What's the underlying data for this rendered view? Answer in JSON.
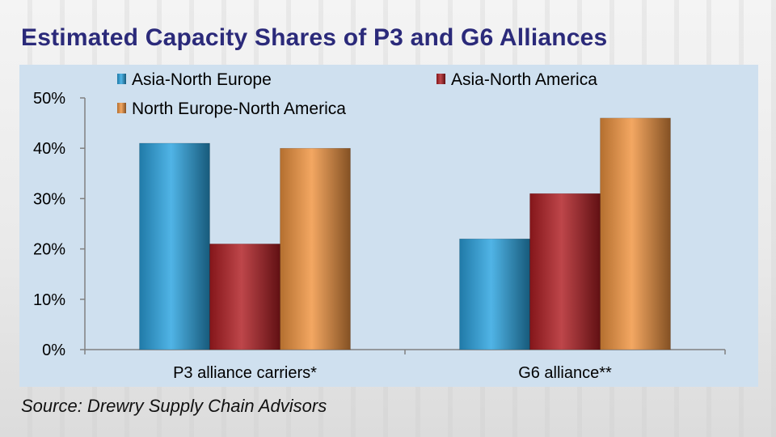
{
  "title": "Estimated Capacity Shares of P3 and G6 Alliances",
  "source": "Source: Drewry Supply Chain Advisors",
  "chart_data": {
    "type": "bar",
    "categories": [
      "P3 alliance carriers*",
      "G6 alliance**"
    ],
    "series": [
      {
        "name": "Asia-North Europe",
        "values": [
          41,
          22
        ],
        "color": "#2aa3e0"
      },
      {
        "name": "Asia-North America",
        "values": [
          21,
          31
        ],
        "color": "#b01d22"
      },
      {
        "name": "North Europe-North America",
        "values": [
          40,
          46
        ],
        "color": "#f0943f"
      }
    ],
    "ylim": [
      0,
      50
    ],
    "yticks": [
      0,
      10,
      20,
      30,
      40,
      50
    ],
    "ytick_labels": [
      "0%",
      "10%",
      "20%",
      "30%",
      "40%",
      "50%"
    ],
    "grid": false,
    "legend_position": "top"
  }
}
